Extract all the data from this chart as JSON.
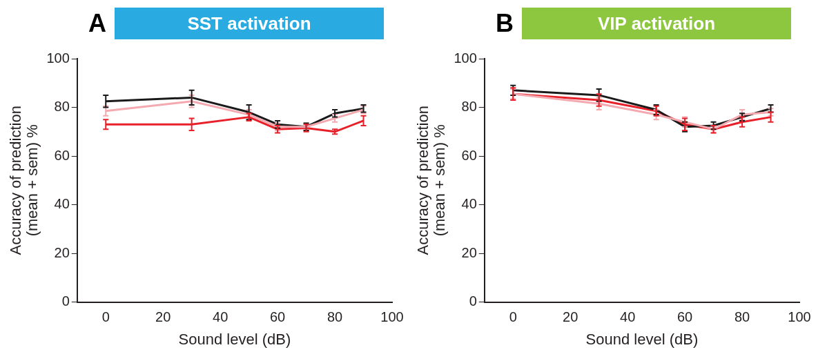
{
  "chart_data": [
    {
      "type": "line",
      "title": "SST activation",
      "annotations": [
        "A"
      ],
      "xlabel": "Sound level (dB)",
      "ylabel": "Accuracy of prediction\n(mean + sem) %",
      "x": [
        0,
        30,
        50,
        60,
        70,
        80,
        90
      ],
      "xlim": [
        -10,
        100
      ],
      "xticks": [
        0,
        20,
        40,
        60,
        80,
        100
      ],
      "ylim": [
        0,
        100
      ],
      "yticks": [
        0,
        20,
        40,
        60,
        80,
        100
      ],
      "grid": false,
      "legend": false,
      "line_style": "solid",
      "series": [
        {
          "color": "#f4a9b0",
          "values": [
            78.5,
            82.5,
            77,
            72,
            72,
            75.5,
            79
          ],
          "errors": [
            2,
            2.5,
            2,
            1.5,
            1.5,
            1.5,
            1.5
          ]
        },
        {
          "color": "#1a1a1a",
          "values": [
            82.5,
            84,
            78,
            73,
            72,
            77.5,
            79.5
          ],
          "errors": [
            2.5,
            3,
            3,
            1.5,
            1.5,
            1.5,
            1.5
          ]
        },
        {
          "color": "#e8202a",
          "values": [
            73,
            73,
            76,
            71,
            71.5,
            70,
            74.5
          ],
          "errors": [
            2,
            2.5,
            1.5,
            1.5,
            1.5,
            1,
            2
          ]
        }
      ]
    },
    {
      "type": "line",
      "title": "VIP activation",
      "annotations": [
        "B"
      ],
      "xlabel": "Sound level (dB)",
      "ylabel": "Accuracy of prediction\n(mean + sem) %",
      "x": [
        0,
        30,
        50,
        60,
        70,
        80,
        90
      ],
      "xlim": [
        -10,
        100
      ],
      "xticks": [
        0,
        20,
        40,
        60,
        80,
        100
      ],
      "ylim": [
        0,
        100
      ],
      "yticks": [
        0,
        20,
        40,
        60,
        80,
        100
      ],
      "grid": false,
      "legend": false,
      "line_style": "solid",
      "series": [
        {
          "color": "#f4a9b0",
          "values": [
            85.5,
            81.5,
            77,
            74,
            71,
            77,
            78
          ],
          "errors": [
            2,
            2.5,
            2,
            2,
            1.5,
            2,
            1.5
          ]
        },
        {
          "color": "#1a1a1a",
          "values": [
            87,
            85,
            79,
            72,
            72.5,
            76,
            79.5
          ],
          "errors": [
            2,
            2.5,
            2,
            2,
            1.5,
            1.5,
            1.5
          ]
        },
        {
          "color": "#e8202a",
          "values": [
            85.5,
            83,
            78.5,
            73,
            71,
            74,
            76
          ],
          "errors": [
            2.5,
            2.5,
            2,
            2.5,
            1.5,
            2,
            2
          ]
        }
      ]
    }
  ]
}
